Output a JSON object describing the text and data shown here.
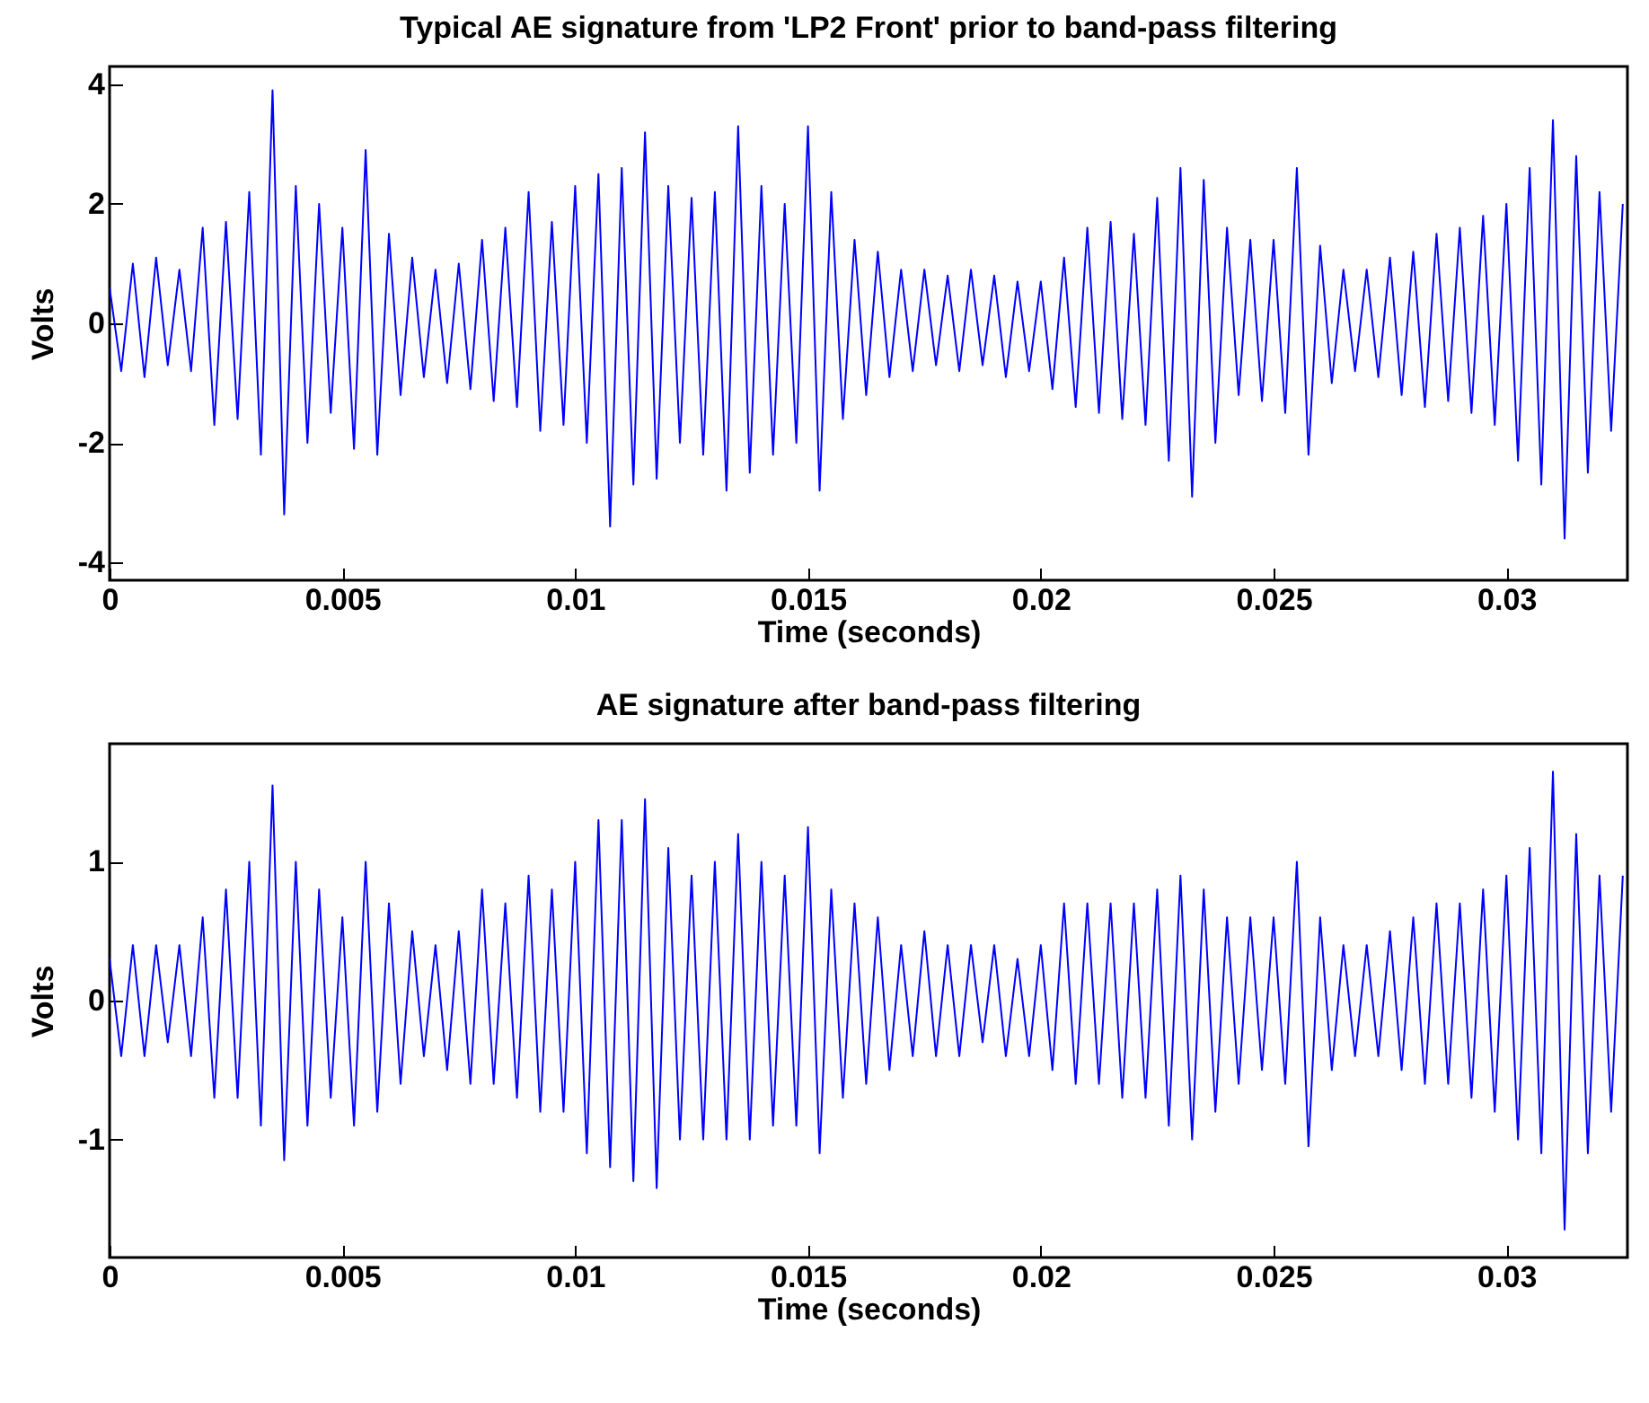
{
  "chart_data": [
    {
      "type": "line",
      "title": "Typical AE signature from 'LP2 Front' prior to band-pass filtering",
      "xlabel": "Time (seconds)",
      "ylabel": "Volts",
      "x": [
        0,
        0.00025,
        0.0005,
        0.00075,
        0.001,
        0.00125,
        0.0015,
        0.00175,
        0.002,
        0.00225,
        0.0025,
        0.00275,
        0.003,
        0.00325,
        0.0035,
        0.00375,
        0.004,
        0.00425,
        0.0045,
        0.00475,
        0.005,
        0.00525,
        0.0055,
        0.00575,
        0.006,
        0.00625,
        0.0065,
        0.00675,
        0.007,
        0.00725,
        0.0075,
        0.00775,
        0.008,
        0.00825,
        0.0085,
        0.00875,
        0.009,
        0.00925,
        0.0095,
        0.00975,
        0.01,
        0.01025,
        0.0105,
        0.01075,
        0.011,
        0.01125,
        0.0115,
        0.01175,
        0.012,
        0.01225,
        0.0125,
        0.01275,
        0.013,
        0.01325,
        0.0135,
        0.01375,
        0.014,
        0.01425,
        0.0145,
        0.01475,
        0.015,
        0.01525,
        0.0155,
        0.01575,
        0.016,
        0.01625,
        0.0165,
        0.01675,
        0.017,
        0.01725,
        0.0175,
        0.01775,
        0.018,
        0.01825,
        0.0185,
        0.01875,
        0.019,
        0.01925,
        0.0195,
        0.01975,
        0.02,
        0.02025,
        0.0205,
        0.02075,
        0.021,
        0.02125,
        0.0215,
        0.02175,
        0.022,
        0.02225,
        0.0225,
        0.02275,
        0.023,
        0.02325,
        0.0235,
        0.02375,
        0.024,
        0.02425,
        0.0245,
        0.02475,
        0.025,
        0.02525,
        0.0255,
        0.02575,
        0.026,
        0.02625,
        0.0265,
        0.02675,
        0.027,
        0.02725,
        0.0275,
        0.02775,
        0.028,
        0.02825,
        0.0285,
        0.02875,
        0.029,
        0.02925,
        0.0295,
        0.02975,
        0.03,
        0.03025,
        0.0305,
        0.03075,
        0.031,
        0.03125,
        0.0315,
        0.03175,
        0.032,
        0.03225,
        0.0325
      ],
      "series": [
        {
          "color": "#0000ff",
          "values": [
            0.6,
            -0.8,
            1.0,
            -0.9,
            1.1,
            -0.7,
            0.9,
            -0.8,
            1.6,
            -1.7,
            1.7,
            -1.6,
            2.2,
            -2.2,
            3.9,
            -3.2,
            2.3,
            -2.0,
            2.0,
            -1.5,
            1.6,
            -2.1,
            2.9,
            -2.2,
            1.5,
            -1.2,
            1.1,
            -0.9,
            0.9,
            -1.0,
            1.0,
            -1.1,
            1.4,
            -1.3,
            1.6,
            -1.4,
            2.2,
            -1.8,
            1.7,
            -1.7,
            2.3,
            -2.0,
            2.5,
            -3.4,
            2.6,
            -2.7,
            3.2,
            -2.6,
            2.3,
            -2.0,
            2.1,
            -2.2,
            2.2,
            -2.8,
            3.3,
            -2.5,
            2.3,
            -2.2,
            2.0,
            -2.0,
            3.3,
            -2.8,
            2.2,
            -1.6,
            1.4,
            -1.2,
            1.2,
            -0.9,
            0.9,
            -0.8,
            0.9,
            -0.7,
            0.8,
            -0.8,
            0.9,
            -0.7,
            0.8,
            -0.9,
            0.7,
            -0.8,
            0.7,
            -1.1,
            1.1,
            -1.4,
            1.6,
            -1.5,
            1.7,
            -1.6,
            1.5,
            -1.7,
            2.1,
            -2.3,
            2.6,
            -2.9,
            2.4,
            -2.0,
            1.6,
            -1.2,
            1.4,
            -1.3,
            1.4,
            -1.5,
            2.6,
            -2.2,
            1.3,
            -1.0,
            0.9,
            -0.8,
            0.9,
            -0.9,
            1.1,
            -1.2,
            1.2,
            -1.4,
            1.5,
            -1.3,
            1.6,
            -1.5,
            1.8,
            -1.7,
            2.0,
            -2.3,
            2.6,
            -2.7,
            3.4,
            -3.6,
            2.8,
            -2.5,
            2.2,
            -1.8,
            2.0
          ]
        }
      ],
      "xlim": [
        0,
        0.0326
      ],
      "xticks": [
        0,
        0.005,
        0.01,
        0.015,
        0.02,
        0.025,
        0.03
      ],
      "ylim": [
        -4.3,
        4.3
      ],
      "yticks": [
        -4,
        -2,
        0,
        2,
        4
      ],
      "line_style": "solid"
    },
    {
      "type": "line",
      "title": "AE signature after band-pass filtering",
      "xlabel": "Time (seconds)",
      "ylabel": "Volts",
      "x": [
        0,
        0.00025,
        0.0005,
        0.00075,
        0.001,
        0.00125,
        0.0015,
        0.00175,
        0.002,
        0.00225,
        0.0025,
        0.00275,
        0.003,
        0.00325,
        0.0035,
        0.00375,
        0.004,
        0.00425,
        0.0045,
        0.00475,
        0.005,
        0.00525,
        0.0055,
        0.00575,
        0.006,
        0.00625,
        0.0065,
        0.00675,
        0.007,
        0.00725,
        0.0075,
        0.00775,
        0.008,
        0.00825,
        0.0085,
        0.00875,
        0.009,
        0.00925,
        0.0095,
        0.00975,
        0.01,
        0.01025,
        0.0105,
        0.01075,
        0.011,
        0.01125,
        0.0115,
        0.01175,
        0.012,
        0.01225,
        0.0125,
        0.01275,
        0.013,
        0.01325,
        0.0135,
        0.01375,
        0.014,
        0.01425,
        0.0145,
        0.01475,
        0.015,
        0.01525,
        0.0155,
        0.01575,
        0.016,
        0.01625,
        0.0165,
        0.01675,
        0.017,
        0.01725,
        0.0175,
        0.01775,
        0.018,
        0.01825,
        0.0185,
        0.01875,
        0.019,
        0.01925,
        0.0195,
        0.01975,
        0.02,
        0.02025,
        0.0205,
        0.02075,
        0.021,
        0.02125,
        0.0215,
        0.02175,
        0.022,
        0.02225,
        0.0225,
        0.02275,
        0.023,
        0.02325,
        0.0235,
        0.02375,
        0.024,
        0.02425,
        0.0245,
        0.02475,
        0.025,
        0.02525,
        0.0255,
        0.02575,
        0.026,
        0.02625,
        0.0265,
        0.02675,
        0.027,
        0.02725,
        0.0275,
        0.02775,
        0.028,
        0.02825,
        0.0285,
        0.02875,
        0.029,
        0.02925,
        0.0295,
        0.02975,
        0.03,
        0.03025,
        0.0305,
        0.03075,
        0.031,
        0.03125,
        0.0315,
        0.03175,
        0.032,
        0.03225,
        0.0325
      ],
      "series": [
        {
          "color": "#0000ff",
          "values": [
            0.3,
            -0.4,
            0.4,
            -0.4,
            0.4,
            -0.3,
            0.4,
            -0.4,
            0.6,
            -0.7,
            0.8,
            -0.7,
            1.0,
            -0.9,
            1.55,
            -1.15,
            1.0,
            -0.9,
            0.8,
            -0.7,
            0.6,
            -0.9,
            1.0,
            -0.8,
            0.7,
            -0.6,
            0.5,
            -0.4,
            0.4,
            -0.5,
            0.5,
            -0.6,
            0.8,
            -0.6,
            0.7,
            -0.7,
            0.9,
            -0.8,
            0.8,
            -0.8,
            1.0,
            -1.1,
            1.3,
            -1.2,
            1.3,
            -1.3,
            1.45,
            -1.35,
            1.1,
            -1.0,
            0.9,
            -1.0,
            1.0,
            -1.0,
            1.2,
            -1.0,
            1.0,
            -0.9,
            0.9,
            -0.9,
            1.25,
            -1.1,
            0.8,
            -0.7,
            0.7,
            -0.6,
            0.6,
            -0.5,
            0.4,
            -0.4,
            0.5,
            -0.4,
            0.4,
            -0.4,
            0.4,
            -0.3,
            0.4,
            -0.4,
            0.3,
            -0.4,
            0.4,
            -0.5,
            0.7,
            -0.6,
            0.7,
            -0.6,
            0.7,
            -0.7,
            0.7,
            -0.7,
            0.8,
            -0.9,
            0.9,
            -1.0,
            0.8,
            -0.8,
            0.6,
            -0.6,
            0.6,
            -0.5,
            0.6,
            -0.6,
            1.0,
            -1.05,
            0.6,
            -0.5,
            0.4,
            -0.4,
            0.4,
            -0.4,
            0.5,
            -0.5,
            0.6,
            -0.6,
            0.7,
            -0.6,
            0.7,
            -0.7,
            0.8,
            -0.8,
            0.9,
            -1.0,
            1.1,
            -1.1,
            1.65,
            -1.65,
            1.2,
            -1.1,
            0.9,
            -0.8,
            0.9
          ]
        }
      ],
      "xlim": [
        0,
        0.0326
      ],
      "xticks": [
        0,
        0.005,
        0.01,
        0.015,
        0.02,
        0.025,
        0.03
      ],
      "ylim": [
        -1.85,
        1.85
      ],
      "yticks": [
        -1,
        0,
        1
      ],
      "line_style": "solid"
    }
  ]
}
